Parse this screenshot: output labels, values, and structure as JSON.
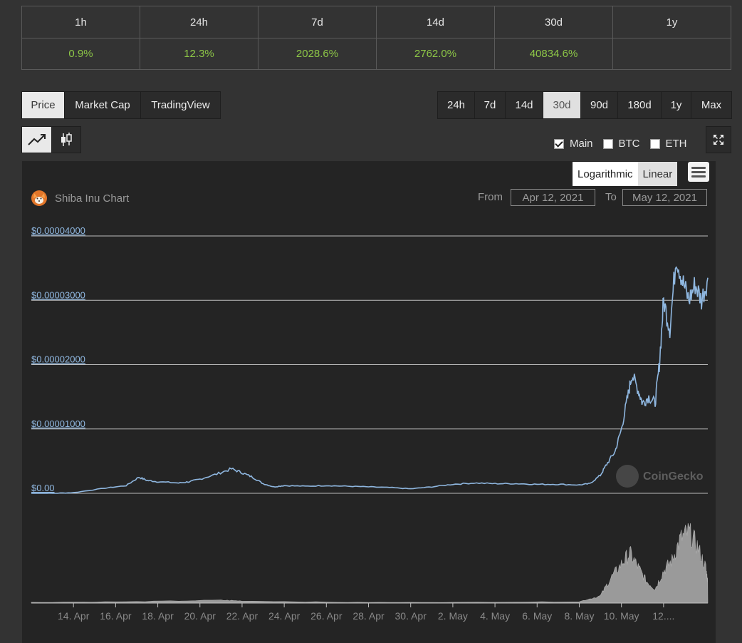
{
  "changes": {
    "headers": [
      "1h",
      "24h",
      "7d",
      "14d",
      "30d",
      "1y"
    ],
    "values": [
      "0.9%",
      "12.3%",
      "2028.6%",
      "2762.0%",
      "40834.6%",
      ""
    ]
  },
  "view_tabs": [
    "Price",
    "Market Cap",
    "TradingView"
  ],
  "active_view": "Price",
  "ranges": [
    "24h",
    "7d",
    "14d",
    "30d",
    "90d",
    "180d",
    "1y",
    "Max"
  ],
  "active_range": "30d",
  "chart_types": [
    "line-chart-icon",
    "candlestick-icon"
  ],
  "compare": [
    {
      "label": "Main",
      "checked": true
    },
    {
      "label": "BTC",
      "checked": false
    },
    {
      "label": "ETH",
      "checked": false
    }
  ],
  "scale": {
    "logarithmic": "Logarithmic",
    "linear": "Linear",
    "selected": "Linear"
  },
  "chart": {
    "title": "Shiba Inu Chart",
    "from_label": "From",
    "to_label": "To",
    "from_date": "Apr 12, 2021",
    "to_date": "May 12, 2021",
    "watermark": "CoinGecko"
  },
  "colors": {
    "positive": "#8dc647",
    "line": "#8fb7e0",
    "volume": "#9a9a9a"
  },
  "chart_data": {
    "type": "line",
    "title": "Shiba Inu Chart",
    "y_ticks": [
      "$0.00004000",
      "$0.00003000",
      "$0.00002000",
      "$0.00001000",
      "$0.00"
    ],
    "ylim": [
      0,
      4e-05
    ],
    "x_ticks": [
      "14. Apr",
      "16. Apr",
      "18. Apr",
      "20. Apr",
      "22. Apr",
      "24. Apr",
      "26. Apr",
      "28. Apr",
      "30. Apr",
      "2. May",
      "4. May",
      "6. May",
      "8. May",
      "10. May",
      "12...."
    ],
    "x_range_days": [
      0,
      30.3
    ],
    "price_series": {
      "name": "Price",
      "points": [
        [
          0,
          0.0
        ],
        [
          1,
          0.0
        ],
        [
          2,
          1e-07
        ],
        [
          3.5,
          8e-07
        ],
        [
          4.5,
          1.2e-06
        ],
        [
          5.1,
          2.5e-06
        ],
        [
          5.5,
          2e-06
        ],
        [
          6,
          1.8e-06
        ],
        [
          7,
          1.6e-06
        ],
        [
          7.5,
          1.8e-06
        ],
        [
          8,
          2.2e-06
        ],
        [
          8.8,
          3e-06
        ],
        [
          9.5,
          3.8e-06
        ],
        [
          10,
          3.2e-06
        ],
        [
          10.5,
          2.5e-06
        ],
        [
          11,
          1.5e-06
        ],
        [
          11.5,
          1e-06
        ],
        [
          12,
          1.2e-06
        ],
        [
          13,
          1.1e-06
        ],
        [
          14,
          1.2e-06
        ],
        [
          15,
          1.1e-06
        ],
        [
          16,
          1e-06
        ],
        [
          17,
          9e-07
        ],
        [
          18,
          7e-07
        ],
        [
          19,
          1e-06
        ],
        [
          20,
          1.4e-06
        ],
        [
          21,
          1.6e-06
        ],
        [
          22,
          1.5e-06
        ],
        [
          23,
          1.5e-06
        ],
        [
          24,
          1.4e-06
        ],
        [
          25,
          1.4e-06
        ],
        [
          26,
          1.3e-06
        ],
        [
          26.5,
          1.5e-06
        ],
        [
          27,
          2.8e-06
        ],
        [
          27.3,
          4.5e-06
        ],
        [
          27.7,
          6.5e-06
        ],
        [
          28,
          1e-05
        ],
        [
          28.3,
          1.5e-05
        ],
        [
          28.5,
          1.85e-05
        ],
        [
          28.8,
          1.6e-05
        ],
        [
          29,
          1.4e-05
        ],
        [
          29.3,
          1.5e-05
        ],
        [
          29.6,
          1.4e-05
        ],
        [
          29.8,
          2e-05
        ],
        [
          30,
          3e-05
        ],
        [
          30.3,
          2.55e-05
        ],
        [
          30.6,
          3.7e-05
        ],
        [
          30.9,
          3.3e-05
        ],
        [
          31.2,
          3e-05
        ],
        [
          31.5,
          3.25e-05
        ],
        [
          31.8,
          3e-05
        ],
        [
          32.1,
          3.35e-05
        ]
      ]
    },
    "volume_series": {
      "name": "Volume",
      "note": "relative units",
      "points": [
        [
          0,
          0.01
        ],
        [
          5,
          0.02
        ],
        [
          9,
          0.04
        ],
        [
          10,
          0.03
        ],
        [
          15,
          0.01
        ],
        [
          20,
          0.01
        ],
        [
          26,
          0.02
        ],
        [
          27,
          0.1
        ],
        [
          27.5,
          0.35
        ],
        [
          28,
          0.55
        ],
        [
          28.4,
          0.7
        ],
        [
          28.8,
          0.5
        ],
        [
          29.2,
          0.3
        ],
        [
          29.6,
          0.2
        ],
        [
          30,
          0.45
        ],
        [
          30.4,
          0.6
        ],
        [
          30.8,
          0.9
        ],
        [
          31.2,
          1.0
        ],
        [
          31.6,
          0.8
        ],
        [
          32,
          0.5
        ],
        [
          32.1,
          0.3
        ]
      ]
    }
  }
}
